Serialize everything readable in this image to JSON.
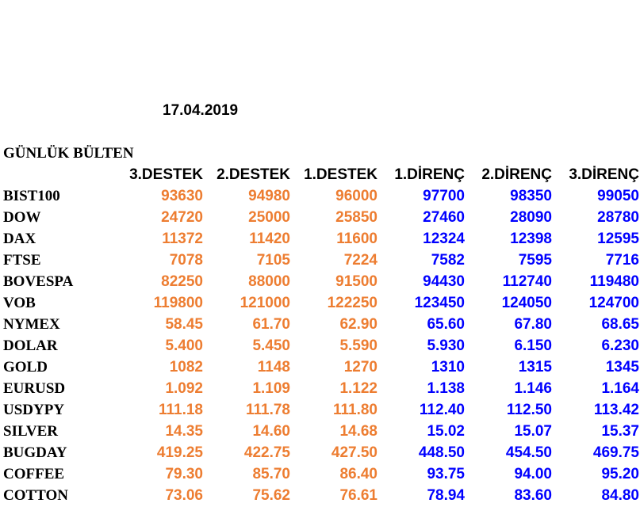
{
  "date": "17.04.2019",
  "title": "GÜNLÜK BÜLTEN",
  "colors": {
    "support": "#ed7d31",
    "resistance": "#0000ff",
    "label": "#000000"
  },
  "headers": [
    "3.DESTEK",
    "2.DESTEK",
    "1.DESTEK",
    "1.DİRENÇ",
    "2.DİRENÇ",
    "3.DİRENÇ"
  ],
  "rows": [
    {
      "name": "BIST100",
      "values": [
        "93630",
        "94980",
        "96000",
        "97700",
        "98350",
        "99050"
      ]
    },
    {
      "name": "DOW",
      "values": [
        "24720",
        "25000",
        "25850",
        "27460",
        "28090",
        "28780"
      ]
    },
    {
      "name": "DAX",
      "values": [
        "11372",
        "11420",
        "11600",
        "12324",
        "12398",
        "12595"
      ]
    },
    {
      "name": "FTSE",
      "values": [
        "7078",
        "7105",
        "7224",
        "7582",
        "7595",
        "7716"
      ]
    },
    {
      "name": "BOVESPA",
      "values": [
        "82250",
        "88000",
        "91500",
        "94430",
        "112740",
        "119480"
      ]
    },
    {
      "name": "VOB",
      "values": [
        "119800",
        "121000",
        "122250",
        "123450",
        "124050",
        "124700"
      ]
    },
    {
      "name": "NYMEX",
      "values": [
        "58.45",
        "61.70",
        "62.90",
        "65.60",
        "67.80",
        "68.65"
      ]
    },
    {
      "name": "DOLAR",
      "values": [
        "5.400",
        "5.450",
        "5.590",
        "5.930",
        "6.150",
        "6.230"
      ]
    },
    {
      "name": "GOLD",
      "values": [
        "1082",
        "1148",
        "1270",
        "1310",
        "1315",
        "1345"
      ]
    },
    {
      "name": "EURUSD",
      "values": [
        "1.092",
        "1.109",
        "1.122",
        "1.138",
        "1.146",
        "1.164"
      ]
    },
    {
      "name": "USDYPY",
      "values": [
        "111.18",
        "111.78",
        "111.80",
        "112.40",
        "112.50",
        "113.42"
      ]
    },
    {
      "name": "SILVER",
      "values": [
        "14.35",
        "14.60",
        "14.68",
        "15.02",
        "15.07",
        "15.37"
      ]
    },
    {
      "name": "BUGDAY",
      "values": [
        "419.25",
        "422.75",
        "427.50",
        "448.50",
        "454.50",
        "469.75"
      ]
    },
    {
      "name": "COFFEE",
      "values": [
        "79.30",
        "85.70",
        "86.40",
        "93.75",
        "94.00",
        "95.20"
      ]
    },
    {
      "name": "COTTON",
      "values": [
        "73.06",
        "75.62",
        "76.61",
        "78.94",
        "83.60",
        "84.80"
      ]
    }
  ]
}
